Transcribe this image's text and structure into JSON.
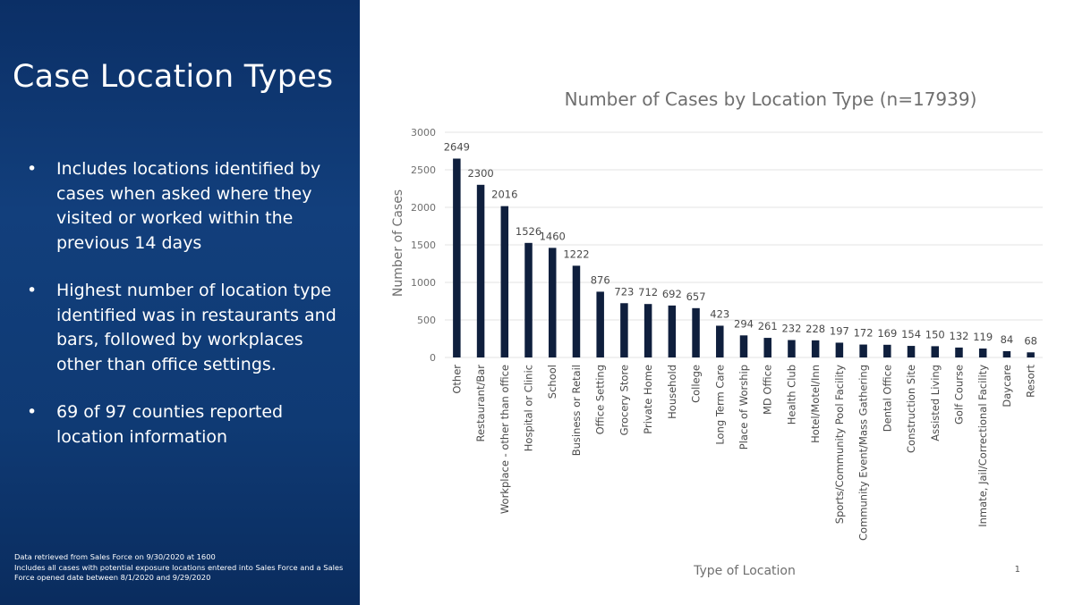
{
  "slide": {
    "title": "Case Location Types",
    "bullets": [
      "Includes locations identified by cases when asked where they visited or worked within the previous 14 days",
      "Highest number of location type identified was in restaurants and bars, followed by workplaces other than office settings.",
      "69 of 97 counties reported location information"
    ],
    "bullet_symbol": "•",
    "footnote": [
      "Data retrieved from Sales Force on 9/30/2020 at 1600",
      "Includes all cases with potential exposure locations entered into Sales Force and a Sales Force opened date between 8/1/2020 and 9/29/2020"
    ],
    "page_number": "1"
  },
  "colors": {
    "panel": "#0f3a74",
    "bar": "#0f1f3d",
    "gridline": "#e3e3e3",
    "muted_text": "#6f6f6f"
  },
  "chart_data": {
    "type": "bar",
    "title": "Number of Cases by Location Type (n=17939)",
    "xlabel": "Type of Location",
    "ylabel": "Number of Cases",
    "ylim": [
      0,
      3000
    ],
    "yticks": [
      0,
      500,
      1000,
      1500,
      2000,
      2500,
      3000
    ],
    "grid": true,
    "categories": [
      "Other",
      "Restaurant/Bar",
      "Workplace - other than office",
      "Hospital or Clinic",
      "School",
      "Business or Retail",
      "Office Setting",
      "Grocery Store",
      "Private Home",
      "Household",
      "College",
      "Long Term Care",
      "Place of Worship",
      "MD Office",
      "Health Club",
      "Hotel/Motel/Inn",
      "Sports/Community Pool Facility",
      "Community Event/Mass Gathering",
      "Dental Office",
      "Construction Site",
      "Assisted Living",
      "Golf Course",
      "Inmate, Jail/Correctional Facility",
      "Daycare",
      "Resort"
    ],
    "values": [
      2649,
      2300,
      2016,
      1526,
      1460,
      1222,
      876,
      723,
      712,
      692,
      657,
      423,
      294,
      261,
      232,
      228,
      197,
      172,
      169,
      154,
      150,
      132,
      119,
      84,
      68
    ]
  }
}
